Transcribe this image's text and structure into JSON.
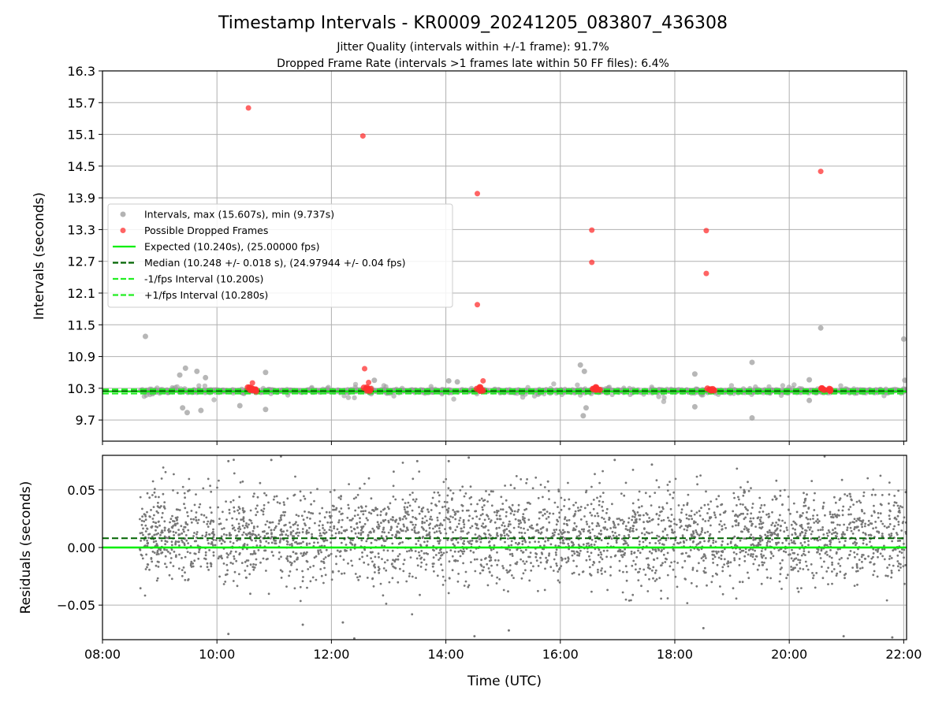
{
  "chart_data": [
    {
      "type": "scatter",
      "title": "Timestamp Intervals - KR0009_20241205_083807_436308",
      "subtitle_1": "Jitter Quality (intervals within +/-1 frame): 91.7%",
      "subtitle_2": "Dropped Frame Rate (intervals >1 frames late within 50 FF files): 6.4%",
      "xlabel": "",
      "ylabel": "Intervals (seconds)",
      "x_unit": "hours UTC",
      "xlim": [
        8.0,
        22.05
      ],
      "ylim": [
        9.3,
        16.3
      ],
      "yticks": [
        "9.7",
        "10.3",
        "10.9",
        "11.5",
        "12.1",
        "12.7",
        "13.3",
        "13.9",
        "14.5",
        "15.1",
        "15.7",
        "16.3"
      ],
      "grid": true,
      "legend_location": "center-left",
      "legend": [
        {
          "label": "Intervals, max (15.607s), min (9.737s)",
          "kind": "marker",
          "color": "#999999"
        },
        {
          "label": "Possible Dropped Frames",
          "kind": "marker",
          "color": "#ff3030"
        },
        {
          "label": "Expected (10.240s), (25.00000 fps)",
          "kind": "line",
          "color": "#00ee00",
          "dash": "solid"
        },
        {
          "label": "Median (10.248 +/- 0.018 s), (24.97944 +/- 0.04 fps)",
          "kind": "line",
          "color": "#006400",
          "dash": "dashed"
        },
        {
          "label": "-1/fps Interval (10.200s)",
          "kind": "line",
          "color": "#22ee22",
          "dash": "dashed"
        },
        {
          "label": "+1/fps Interval (10.280s)",
          "kind": "line",
          "color": "#22ee22",
          "dash": "dashed"
        }
      ],
      "reference_lines": {
        "expected": 10.24,
        "median": 10.248,
        "minus_one_fps": 10.2,
        "plus_one_fps": 10.28
      },
      "series": [
        {
          "name": "Intervals, max (15.607s), min (9.737s)",
          "color": "#999999",
          "x_range": [
            8.65,
            22.05
          ],
          "typical_y": 10.248,
          "spread": 0.018,
          "outliers": [
            {
              "x": 8.75,
              "y": 11.28
            },
            {
              "x": 9.35,
              "y": 10.55
            },
            {
              "x": 9.45,
              "y": 10.68
            },
            {
              "x": 9.65,
              "y": 10.62
            },
            {
              "x": 9.4,
              "y": 9.93
            },
            {
              "x": 9.48,
              "y": 9.84
            },
            {
              "x": 9.72,
              "y": 9.88
            },
            {
              "x": 9.8,
              "y": 10.5
            },
            {
              "x": 10.4,
              "y": 9.97
            },
            {
              "x": 10.85,
              "y": 10.6
            },
            {
              "x": 10.85,
              "y": 9.9
            },
            {
              "x": 12.75,
              "y": 10.45
            },
            {
              "x": 14.05,
              "y": 10.44
            },
            {
              "x": 14.2,
              "y": 10.42
            },
            {
              "x": 16.35,
              "y": 10.74
            },
            {
              "x": 16.42,
              "y": 10.62
            },
            {
              "x": 16.45,
              "y": 9.93
            },
            {
              "x": 16.4,
              "y": 9.78
            },
            {
              "x": 18.35,
              "y": 10.57
            },
            {
              "x": 18.35,
              "y": 9.95
            },
            {
              "x": 19.35,
              "y": 10.79
            },
            {
              "x": 19.35,
              "y": 9.74
            },
            {
              "x": 20.35,
              "y": 10.46
            },
            {
              "x": 20.35,
              "y": 10.07
            },
            {
              "x": 20.55,
              "y": 11.44
            },
            {
              "x": 22.0,
              "y": 11.23
            },
            {
              "x": 22.02,
              "y": 10.45
            }
          ]
        },
        {
          "name": "Possible Dropped Frames",
          "color": "#ff3030",
          "points": [
            {
              "x": 10.55,
              "y": 15.6
            },
            {
              "x": 10.62,
              "y": 10.4
            },
            {
              "x": 10.57,
              "y": 10.3
            },
            {
              "x": 10.62,
              "y": 10.28
            },
            {
              "x": 10.68,
              "y": 10.26
            },
            {
              "x": 12.55,
              "y": 15.07
            },
            {
              "x": 12.58,
              "y": 10.67
            },
            {
              "x": 12.65,
              "y": 10.41
            },
            {
              "x": 12.6,
              "y": 10.3
            },
            {
              "x": 12.66,
              "y": 10.27
            },
            {
              "x": 14.55,
              "y": 13.98
            },
            {
              "x": 14.55,
              "y": 11.88
            },
            {
              "x": 14.65,
              "y": 10.44
            },
            {
              "x": 14.58,
              "y": 10.3
            },
            {
              "x": 14.63,
              "y": 10.27
            },
            {
              "x": 16.55,
              "y": 13.29
            },
            {
              "x": 16.55,
              "y": 12.68
            },
            {
              "x": 16.6,
              "y": 10.3
            },
            {
              "x": 16.66,
              "y": 10.28
            },
            {
              "x": 18.55,
              "y": 13.28
            },
            {
              "x": 18.55,
              "y": 12.47
            },
            {
              "x": 18.6,
              "y": 10.28
            },
            {
              "x": 18.68,
              "y": 10.27
            },
            {
              "x": 20.55,
              "y": 14.4
            },
            {
              "x": 20.6,
              "y": 10.28
            },
            {
              "x": 20.68,
              "y": 10.27
            }
          ]
        }
      ]
    },
    {
      "type": "scatter",
      "xlabel": "Time (UTC)",
      "ylabel": "Residuals (seconds)",
      "xlim": [
        8.0,
        22.05
      ],
      "ylim": [
        -0.08,
        0.08
      ],
      "xticks": [
        "08:00",
        "10:00",
        "12:00",
        "14:00",
        "16:00",
        "18:00",
        "20:00",
        "22:00"
      ],
      "yticks": [
        "−0.05",
        "0.00",
        "0.05"
      ],
      "grid": true,
      "reference_lines": {
        "expected": 0.0,
        "median": 0.008
      },
      "series": [
        {
          "name": "Residuals",
          "color": "#777777",
          "x_range": [
            8.65,
            22.05
          ],
          "center": 0.01,
          "spread": 0.02,
          "extremes": [
            {
              "x": 10.2,
              "y": 0.075
            },
            {
              "x": 10.2,
              "y": -0.075
            },
            {
              "x": 10.95,
              "y": 0.076
            },
            {
              "x": 11.5,
              "y": -0.067
            },
            {
              "x": 12.2,
              "y": -0.065
            },
            {
              "x": 12.4,
              "y": -0.079
            },
            {
              "x": 13.5,
              "y": 0.075
            },
            {
              "x": 14.05,
              "y": 0.075
            },
            {
              "x": 14.4,
              "y": 0.078
            },
            {
              "x": 14.5,
              "y": -0.077
            },
            {
              "x": 15.1,
              "y": -0.072
            },
            {
              "x": 16.95,
              "y": 0.076
            },
            {
              "x": 17.6,
              "y": 0.072
            },
            {
              "x": 18.5,
              "y": -0.07
            },
            {
              "x": 20.95,
              "y": -0.077
            },
            {
              "x": 21.8,
              "y": -0.078
            }
          ]
        }
      ]
    }
  ]
}
